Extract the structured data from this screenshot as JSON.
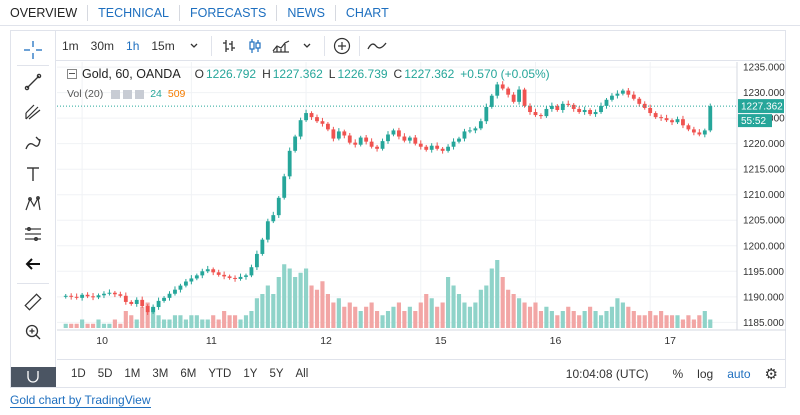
{
  "topnav": [
    "OVERVIEW",
    "TECHNICAL",
    "FORECASTS",
    "NEWS",
    "CHART"
  ],
  "toolbar": {
    "intervals": [
      "1m",
      "30m",
      "1h",
      "15m"
    ],
    "active_interval": "1h"
  },
  "legend": {
    "symbol": "Gold, 60, OANDA",
    "o_label": "O",
    "o": "1226.792",
    "h_label": "H",
    "h": "1227.362",
    "l_label": "L",
    "l": "1226.739",
    "c_label": "C",
    "c": "1227.362",
    "change": "+0.570 (+0.05%)"
  },
  "volume_legend": {
    "label": "Vol (20)",
    "v1": "24",
    "v2": "509"
  },
  "bottombar": {
    "ranges": [
      "1D",
      "5D",
      "1M",
      "3M",
      "6M",
      "YTD",
      "1Y",
      "5Y",
      "All"
    ],
    "time": "10:04:08 (UTC)",
    "percent": "%",
    "log": "log",
    "auto": "auto"
  },
  "footer": {
    "link_text": "Gold chart by TradingView"
  },
  "colors": {
    "up": "#26a69a",
    "down": "#ef5350",
    "vol_up": "#8fd3c9",
    "vol_down": "#f2a6a5",
    "accent": "#1e6fbf"
  },
  "chart_data": {
    "type": "candlestick",
    "x_tick_labels": [
      "10",
      "11",
      "12",
      "15",
      "16",
      "17"
    ],
    "y_tick_labels": [
      "1235.000",
      "1230.000",
      "1225.000",
      "1220.000",
      "1215.000",
      "1210.000",
      "1205.000",
      "1200.000",
      "1195.000",
      "1190.000",
      "1185.000"
    ],
    "ylim": [
      1183.5,
      1236
    ],
    "last_price": "1227.362",
    "countdown": "55:52",
    "closes": [
      1190.2,
      1190.0,
      1189.8,
      1190.4,
      1190.1,
      1189.9,
      1190.3,
      1190.6,
      1190.8,
      1190.5,
      1190.2,
      1189.0,
      1188.6,
      1189.4,
      1188.2,
      1187.0,
      1188.0,
      1189.2,
      1189.8,
      1190.6,
      1191.4,
      1192.2,
      1193.0,
      1193.6,
      1194.2,
      1195.0,
      1195.4,
      1194.8,
      1194.3,
      1194.0,
      1193.7,
      1193.5,
      1193.9,
      1194.2,
      1195.8,
      1198.4,
      1201.2,
      1204.8,
      1206.0,
      1209.4,
      1213.6,
      1218.6,
      1221.4,
      1224.6,
      1226.0,
      1225.2,
      1224.4,
      1223.9,
      1222.8,
      1221.0,
      1222.4,
      1221.6,
      1220.2,
      1219.8,
      1221.2,
      1220.4,
      1219.4,
      1219.0,
      1220.5,
      1221.8,
      1222.6,
      1221.4,
      1220.6,
      1221.2,
      1220.0,
      1219.4,
      1218.8,
      1219.6,
      1219.0,
      1218.6,
      1219.4,
      1220.4,
      1221.0,
      1222.4,
      1222.6,
      1223.0,
      1224.4,
      1227.2,
      1229.4,
      1231.6,
      1230.8,
      1229.6,
      1228.2,
      1230.6,
      1227.4,
      1226.2,
      1225.6,
      1225.4,
      1226.8,
      1227.4,
      1226.6,
      1227.8,
      1227.6,
      1226.8,
      1226.2,
      1226.6,
      1225.8,
      1226.2,
      1227.4,
      1228.6,
      1229.4,
      1229.8,
      1230.4,
      1229.6,
      1228.8,
      1227.8,
      1227.0,
      1226.0,
      1225.2,
      1225.0,
      1224.6,
      1224.2,
      1224.8,
      1223.6,
      1222.8,
      1222.2,
      1221.8,
      1222.6,
      1227.36
    ],
    "volumes": [
      1,
      1,
      1,
      2,
      1,
      1,
      2,
      1,
      1,
      2,
      1,
      4,
      3,
      2,
      5,
      6,
      5,
      3,
      2,
      2,
      3,
      3,
      2,
      3,
      3,
      2,
      2,
      3,
      2,
      4,
      3,
      3,
      2,
      3,
      4,
      7,
      8,
      10,
      8,
      12,
      15,
      14,
      12,
      13,
      14,
      10,
      9,
      11,
      8,
      6,
      7,
      5,
      6,
      5,
      4,
      5,
      6,
      4,
      3,
      4,
      5,
      6,
      4,
      5,
      4,
      6,
      8,
      7,
      5,
      6,
      12,
      10,
      8,
      6,
      5,
      6,
      9,
      10,
      14,
      16,
      12,
      9,
      8,
      7,
      6,
      5,
      6,
      4,
      5,
      4,
      3,
      4,
      5,
      4,
      3,
      4,
      5,
      4,
      3,
      4,
      5,
      7,
      6,
      5,
      4,
      3,
      3,
      4,
      3,
      4,
      3,
      3,
      3,
      2,
      3,
      2,
      3,
      4,
      2
    ]
  }
}
